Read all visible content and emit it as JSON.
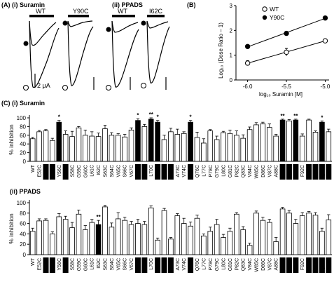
{
  "panel_A": {
    "label": "(A) (i) Suramin",
    "label_ii": "(ii) PPADS",
    "traces_i": [
      {
        "name": "WT"
      },
      {
        "name": "Y90C"
      }
    ],
    "traces_ii": [
      {
        "name": "WT"
      },
      {
        "name": "I62C"
      }
    ],
    "scale_bar": "2 μA"
  },
  "panel_B": {
    "label": "(B)",
    "legend": [
      {
        "name": "WT",
        "marker": "open"
      },
      {
        "name": "Y90C",
        "marker": "filled"
      }
    ]
  },
  "panel_C": {
    "label_i": "(C) (i) Suramin",
    "label_ii": "(ii) PPADS",
    "significance": "**",
    "significance_single": "*"
  },
  "chart_data": [
    {
      "type": "scatter",
      "xlabel": "log₁₀ Suramin [M]",
      "ylabel": "Log₁₀ (Dose Ratio – 1)",
      "xticks": [
        "-6.0",
        "-5.5",
        "-5.0"
      ],
      "yticks": [
        "0",
        "1",
        "2",
        "3"
      ],
      "xlim": [
        -6.15,
        -4.95
      ],
      "ylim": [
        0,
        3
      ],
      "series": [
        {
          "name": "WT",
          "marker": "open",
          "x": [
            -6.0,
            -5.5,
            -5.0
          ],
          "y": [
            0.68,
            1.12,
            1.58
          ],
          "err": [
            0.1,
            0.15,
            0.06
          ]
        },
        {
          "name": "Y90C",
          "marker": "filled",
          "x": [
            -6.0,
            -5.5,
            -5.0
          ],
          "y": [
            1.35,
            1.88,
            2.5
          ],
          "err": [
            0.05,
            0.05,
            0.05
          ]
        }
      ]
    },
    {
      "type": "bar",
      "panel": "(C) (i) Suramin",
      "ylabel": "% inhibition",
      "yticks": [
        "0",
        "20",
        "40",
        "60",
        "80",
        "100"
      ],
      "ylim": [
        0,
        100
      ],
      "categories": [
        "WT",
        "E52C",
        "K53C",
        "Y55C",
        "Y56C",
        "Q57C",
        "S58C",
        "G59C",
        "G60C",
        "L61C",
        "I62C",
        "S63C",
        "S64C",
        "V65C",
        "S66C",
        "V67C",
        "K68C",
        "I69C",
        "L70C",
        "K71C",
        "G72C",
        "L72C",
        "A73C",
        "V74C",
        "T75C",
        "Q76C",
        "L77C",
        "P78C",
        "G79C",
        "L80C",
        "G81C",
        "P82C",
        "Q83C",
        "V84C",
        "W85C",
        "D86C",
        "V87C",
        "A88C",
        "D89C",
        "Y90C",
        "V91C",
        "F92C",
        "P93C",
        "A94C",
        "Q95C",
        "G96C"
      ],
      "highlighted": [
        "K53C",
        "Y55C",
        "Q57C",
        "K68C",
        "I69C",
        "K71C",
        "G72C",
        "L72C",
        "T75C",
        "D89C",
        "Y90C",
        "V91C",
        "P93C",
        "A94C",
        "Q95C",
        "G96C"
      ],
      "values": [
        52,
        68,
        70,
        48,
        90,
        62,
        57,
        77,
        60,
        58,
        57,
        75,
        60,
        60,
        56,
        72,
        94,
        80,
        97,
        90,
        50,
        68,
        62,
        64,
        90,
        55,
        42,
        70,
        50,
        66,
        64,
        60,
        53,
        73,
        84,
        86,
        78,
        58,
        95,
        93,
        95,
        58,
        95,
        67,
        90,
        68
      ],
      "errors": [
        3,
        3,
        3,
        5,
        4,
        8,
        12,
        3,
        12,
        10,
        8,
        8,
        6,
        4,
        6,
        5,
        4,
        5,
        3,
        4,
        10,
        8,
        12,
        4,
        4,
        12,
        10,
        3,
        8,
        3,
        8,
        10,
        8,
        6,
        5,
        4,
        8,
        4,
        2,
        3,
        2,
        5,
        2,
        3,
        3,
        6
      ],
      "significant": [
        {
          "category": "Y56C",
          "mark": "*"
        },
        {
          "category": "K68C",
          "mark": "*"
        },
        {
          "category": "L70C",
          "mark": "**"
        },
        {
          "category": "K71C",
          "mark": "*"
        },
        {
          "category": "T75C",
          "mark": "*"
        },
        {
          "category": "D89C",
          "mark": "**"
        },
        {
          "category": "V91C",
          "mark": "**"
        },
        {
          "category": "Q95C",
          "mark": "*"
        }
      ]
    },
    {
      "type": "bar",
      "panel": "(ii) PPADS",
      "ylabel": "% inhibition",
      "yticks": [
        "0",
        "20",
        "40",
        "60",
        "80",
        "100"
      ],
      "ylim": [
        0,
        100
      ],
      "categories": [
        "WT",
        "E52C",
        "K53C",
        "Y55C",
        "Y56C",
        "Q57C",
        "S58C",
        "G59C",
        "G60C",
        "L61C",
        "I62C",
        "S63C",
        "S64C",
        "V65C",
        "S66C",
        "V67C",
        "K68C",
        "I69C",
        "L70C",
        "K71C",
        "G72C",
        "L72C",
        "A73C",
        "V74C",
        "T75C",
        "Q76C",
        "L77C",
        "P78C",
        "G79C",
        "L80C",
        "G81C",
        "P82C",
        "Q83C",
        "V84C",
        "W85C",
        "D86C",
        "V87C",
        "A88C",
        "D89C",
        "Y90C",
        "V91C",
        "F92C",
        "P93C",
        "A94C",
        "Q95C",
        "G96C"
      ],
      "highlighted": [
        "K53C",
        "Y55C",
        "Q57C",
        "K68C",
        "I69C",
        "K71C",
        "G72C",
        "L72C",
        "T75C",
        "D89C",
        "Y90C",
        "V91C",
        "P93C",
        "A94C",
        "Q95C",
        "G96C"
      ],
      "filled": [
        "I62C"
      ],
      "values": [
        45,
        65,
        66,
        40,
        73,
        68,
        52,
        78,
        48,
        62,
        58,
        92,
        53,
        69,
        66,
        58,
        60,
        58,
        90,
        28,
        85,
        30,
        75,
        60,
        55,
        70,
        36,
        45,
        58,
        33,
        45,
        78,
        48,
        18,
        80,
        66,
        62,
        25,
        88,
        80,
        60,
        75,
        80,
        76,
        45,
        67
      ],
      "errors": [
        6,
        4,
        3,
        4,
        6,
        6,
        10,
        8,
        8,
        6,
        8,
        3,
        8,
        12,
        6,
        6,
        8,
        6,
        4,
        4,
        4,
        3,
        4,
        10,
        8,
        6,
        4,
        8,
        10,
        6,
        6,
        3,
        6,
        4,
        4,
        6,
        6,
        8,
        3,
        5,
        8,
        6,
        3,
        5,
        6,
        10
      ],
      "significant": [
        {
          "category": "I62C",
          "mark": "**"
        }
      ]
    }
  ]
}
